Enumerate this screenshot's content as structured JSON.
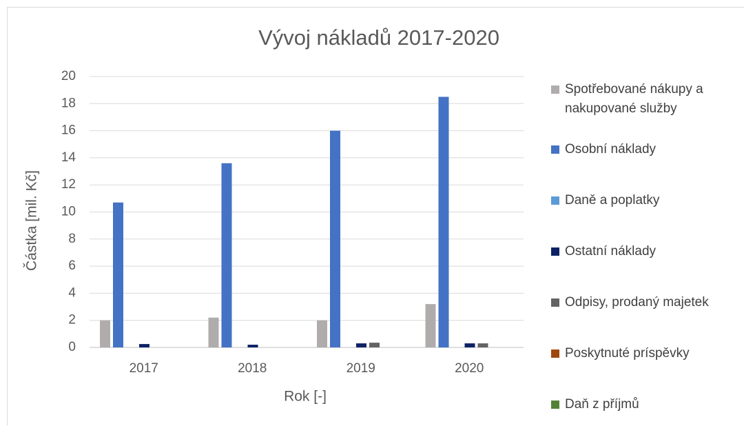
{
  "chart_data": {
    "type": "bar",
    "title": "Vývoj nákladů 2017-2020",
    "x_label": "Rok [-]",
    "y_label": "Částka [mil. Kč]",
    "categories": [
      "2017",
      "2018",
      "2019",
      "2020"
    ],
    "series": [
      {
        "name": "Spotřebované nákupy a nakupované služby",
        "color": "#b0acac",
        "values": [
          2.0,
          2.2,
          2.0,
          3.2
        ]
      },
      {
        "name": "Osobní náklady",
        "color": "#4472c4",
        "values": [
          10.7,
          13.6,
          16.0,
          18.5
        ]
      },
      {
        "name": "Daně a poplatky",
        "color": "#5b9bd5",
        "values": [
          0,
          0,
          0,
          0
        ]
      },
      {
        "name": "Ostatní náklady",
        "color": "#0d2265",
        "values": [
          0.25,
          0.2,
          0.3,
          0.3
        ]
      },
      {
        "name": "Odpisy, prodaný majetek",
        "color": "#636363",
        "values": [
          0,
          0,
          0.35,
          0.3
        ]
      },
      {
        "name": "Poskytnuté príspěvky",
        "color": "#9e480e",
        "values": [
          0,
          0,
          0,
          0
        ]
      },
      {
        "name": "Daň z příjmů",
        "color": "#548235",
        "values": [
          0,
          0,
          0,
          0
        ]
      }
    ],
    "ylim": [
      0,
      20
    ],
    "yticks": [
      0,
      2,
      4,
      6,
      8,
      10,
      12,
      14,
      16,
      18,
      20
    ],
    "grid": true,
    "legend": "right"
  }
}
